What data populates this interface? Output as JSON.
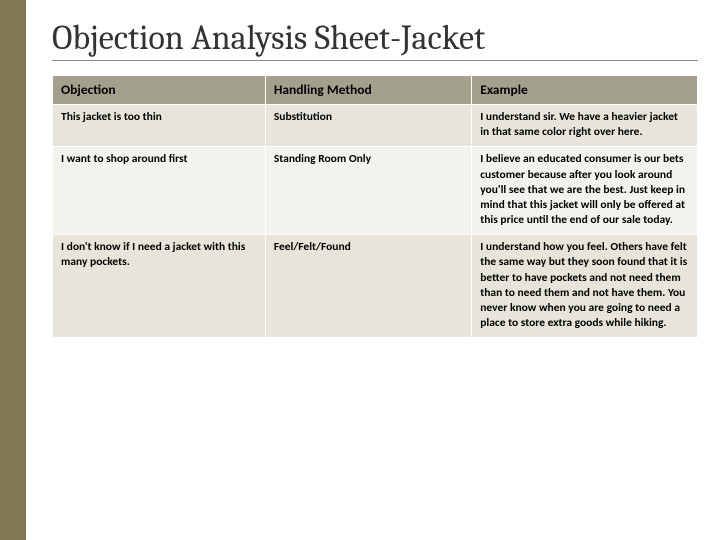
{
  "slide": {
    "title": "Objection Analysis Sheet-Jacket",
    "title_color": "#333333",
    "title_fontsize": 34,
    "sidebar_color": "#807755",
    "background": "#ffffff"
  },
  "table": {
    "type": "table",
    "header_bg": "#a3a08d",
    "header_text_color": "#000000",
    "row_bg_odd": "#e7e5d9",
    "row_bg_even": "#f3f2ec",
    "cell_text_color": "#000000",
    "cell_border_color": "#ffffff",
    "header_fontsize": 13.5,
    "body_fontsize": 11.5,
    "columns": [
      {
        "label": "Objection",
        "width": "33%"
      },
      {
        "label": "Handling Method",
        "width": "32%"
      },
      {
        "label": "Example",
        "width": "35%"
      }
    ],
    "rows": [
      {
        "objection": "This jacket is too thin",
        "method": "Substitution",
        "example": "I understand sir. We have a heavier jacket in that same color right over here."
      },
      {
        "objection": "I want to shop around first",
        "method": "Standing Room Only",
        "example": "I believe an educated consumer is our bets customer because after you look around you'll see that we are the best. Just keep in mind that this jacket will only be offered at this price until the end of our sale today."
      },
      {
        "objection": "I don't know if I need a jacket with this many pockets.",
        "method": "Feel/Felt/Found",
        "example": "I understand how you feel. Others have felt the same way but they soon found that it is better to have pockets and not need them than to need them and not have them.  You never know when you are going to need a place to store extra goods while hiking."
      }
    ]
  }
}
